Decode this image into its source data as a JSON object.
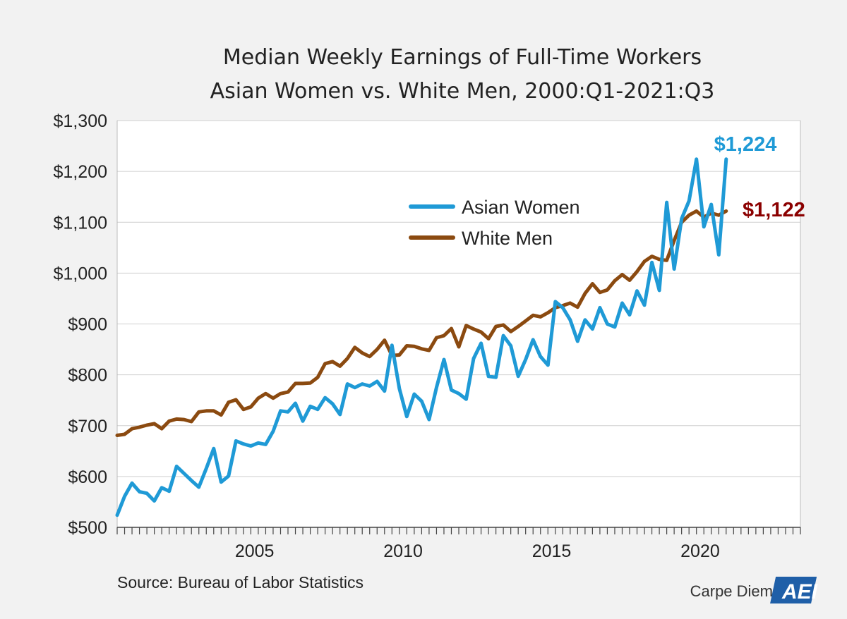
{
  "chart_data": {
    "type": "line",
    "title_line1": "Median Weekly Earnings of Full-Time Workers",
    "title_line2": "Asian Women vs. White Men, 2000:Q1-2021:Q3",
    "ylim": [
      500,
      1300
    ],
    "yticks": [
      500,
      600,
      700,
      800,
      900,
      1000,
      1100,
      1200,
      1300
    ],
    "ytick_labels": [
      "$500",
      "$600",
      "$700",
      "$800",
      "$900",
      "$1,000",
      "$1,100",
      "$1,200",
      "$1,300"
    ],
    "xticks": [
      2005,
      2010,
      2015,
      2020
    ],
    "xtick_labels": [
      "2005",
      "2010",
      "2015",
      "2020"
    ],
    "xlim": [
      2000.875,
      2023.875
    ],
    "grid": true,
    "legend_position": "upper-middle",
    "colors": {
      "asian_women": "#1f9ad6",
      "white_men": "#8b4a10",
      "white_men_label": "#8b0000"
    },
    "series": [
      {
        "name": "Asian Women",
        "key": "asian_women",
        "end_label": "$1,224",
        "start": 2000.875,
        "step": 0.25,
        "values": [
          524,
          561,
          587,
          570,
          567,
          552,
          578,
          571,
          620,
          606,
          592,
          579,
          616,
          655,
          589,
          601,
          670,
          664,
          660,
          666,
          663,
          689,
          729,
          727,
          744,
          709,
          738,
          732,
          755,
          743,
          722,
          782,
          775,
          782,
          778,
          787,
          768,
          858,
          773,
          718,
          762,
          748,
          712,
          775,
          830,
          770,
          763,
          752,
          832,
          862,
          797,
          795,
          877,
          857,
          797,
          830,
          869,
          836,
          819,
          944,
          932,
          908,
          866,
          908,
          890,
          932,
          900,
          894,
          941,
          918,
          965,
          937,
          1021,
          966,
          1139,
          1008,
          1107,
          1142,
          1224,
          1091,
          1135,
          1036,
          1224
        ]
      },
      {
        "name": "White Men",
        "key": "white_men",
        "end_label": "$1,122",
        "start": 2000.875,
        "step": 0.25,
        "values": [
          681,
          683,
          694,
          697,
          701,
          704,
          694,
          709,
          713,
          712,
          708,
          727,
          729,
          729,
          721,
          746,
          751,
          732,
          737,
          754,
          763,
          754,
          763,
          766,
          783,
          783,
          784,
          795,
          822,
          826,
          817,
          832,
          854,
          843,
          836,
          850,
          868,
          838,
          839,
          857,
          856,
          851,
          848,
          873,
          877,
          891,
          855,
          897,
          890,
          884,
          871,
          895,
          898,
          885,
          895,
          906,
          917,
          914,
          922,
          932,
          936,
          941,
          933,
          960,
          979,
          962,
          967,
          985,
          997,
          986,
          1003,
          1023,
          1033,
          1027,
          1025,
          1064,
          1100,
          1114,
          1122,
          1110,
          1118,
          1114,
          1122
        ]
      }
    ]
  },
  "source_text": "Source: Bureau of Labor Statistics",
  "brand_text": "Carpe Diem",
  "logo_text": "AEI"
}
